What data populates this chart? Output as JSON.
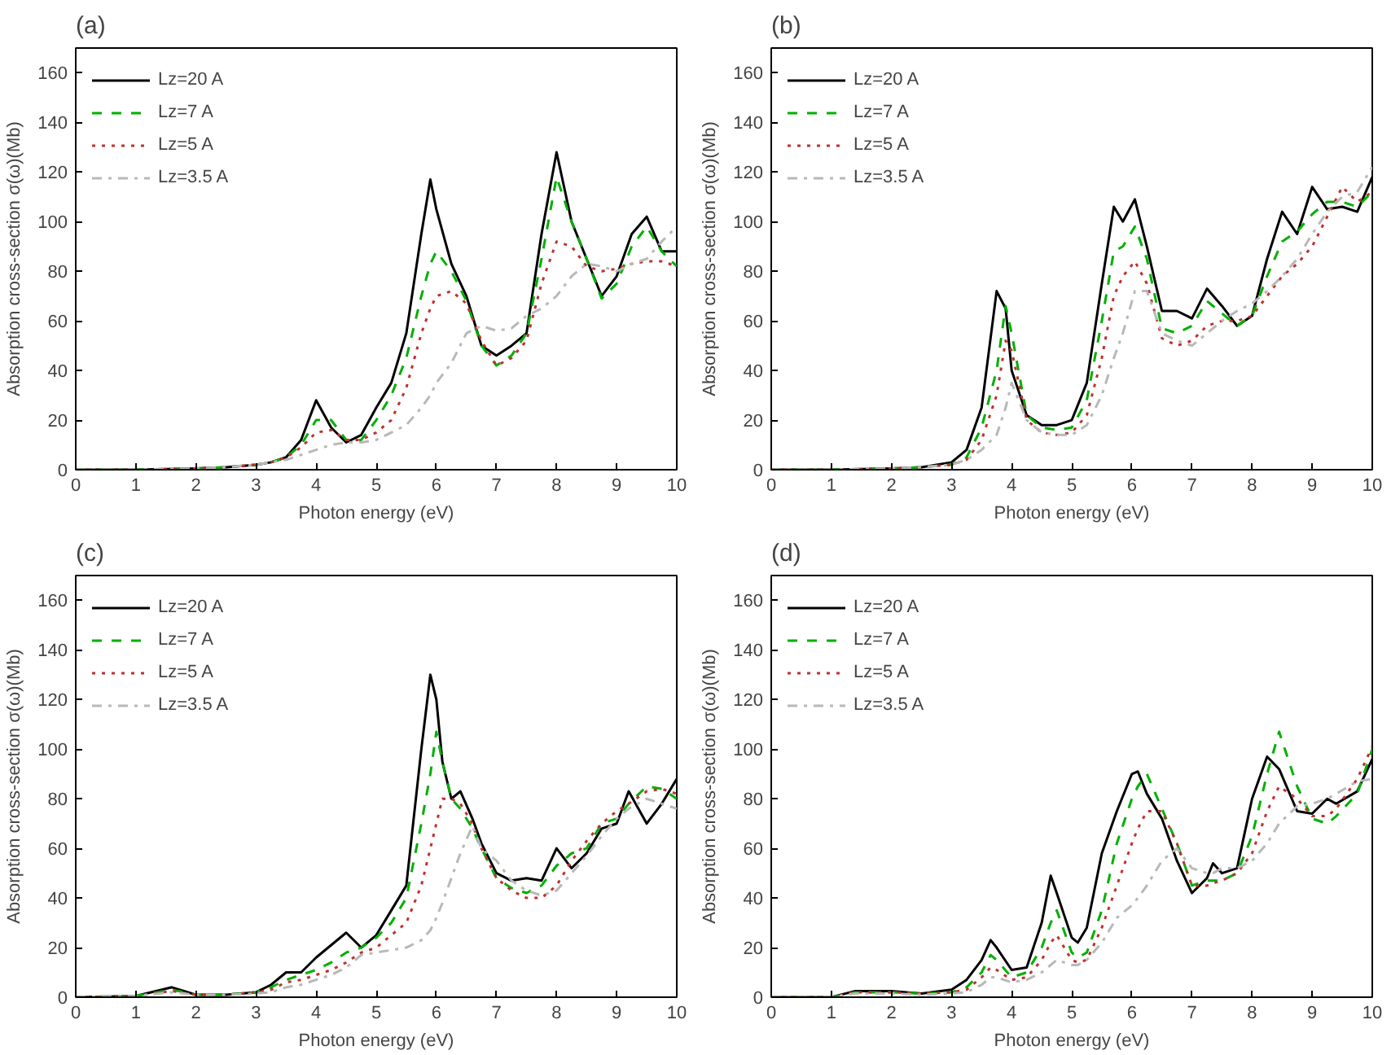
{
  "chart_data": [
    {
      "type": "line",
      "title": "(a)",
      "xlabel": "Photon energy (eV)",
      "ylabel": "Absorption cross-section σ(ω)(Mb)",
      "xlim": [
        0,
        10
      ],
      "ylim": [
        0,
        170
      ],
      "xticks": [
        0,
        1,
        2,
        3,
        4,
        5,
        6,
        7,
        8,
        9,
        10
      ],
      "yticks": [
        0,
        20,
        40,
        60,
        80,
        100,
        120,
        140,
        160
      ],
      "legend": "top left",
      "grid": false,
      "x": [
        0,
        1,
        2,
        2.5,
        3,
        3.25,
        3.5,
        3.75,
        4,
        4.25,
        4.5,
        4.75,
        5,
        5.25,
        5.5,
        5.75,
        5.9,
        6,
        6.25,
        6.5,
        6.75,
        7,
        7.25,
        7.5,
        7.75,
        8,
        8.25,
        8.5,
        8.75,
        9,
        9.25,
        9.5,
        9.75,
        10
      ],
      "series": [
        {
          "name": "Lz=20 A",
          "color": "#000000",
          "line_style": "solid",
          "values": [
            0,
            0,
            0.5,
            1,
            2,
            3,
            5,
            12,
            28,
            17,
            11,
            14,
            25,
            35,
            55,
            95,
            117,
            105,
            83,
            70,
            50,
            46,
            50,
            55,
            95,
            128,
            100,
            85,
            70,
            78,
            95,
            102,
            88,
            88
          ]
        },
        {
          "name": "Lz=7 A",
          "color": "#00b000",
          "line_style": "dashed",
          "values": [
            0,
            0,
            0.5,
            1,
            2,
            3,
            5,
            10,
            20,
            20,
            12,
            12,
            20,
            30,
            45,
            70,
            83,
            88,
            80,
            68,
            50,
            42,
            46,
            55,
            85,
            118,
            100,
            85,
            69,
            75,
            90,
            98,
            88,
            82
          ]
        },
        {
          "name": "Lz=5 A",
          "color": "#c03030",
          "line_style": "dotted",
          "values": [
            0,
            0,
            0.5,
            1,
            2,
            3,
            5,
            9,
            15,
            16,
            12,
            12,
            15,
            20,
            33,
            55,
            65,
            70,
            72,
            67,
            52,
            42,
            45,
            52,
            75,
            92,
            90,
            82,
            80,
            81,
            83,
            84,
            84,
            82
          ]
        },
        {
          "name": "Lz=3.5 A",
          "color": "#b8b8b8",
          "line_style": "dashdot",
          "values": [
            0,
            0,
            0.5,
            1,
            2,
            3,
            4,
            6,
            8,
            10,
            11,
            11,
            12,
            15,
            18,
            25,
            30,
            35,
            43,
            55,
            58,
            56,
            57,
            62,
            65,
            70,
            78,
            83,
            82,
            80,
            83,
            85,
            92,
            98
          ]
        }
      ]
    },
    {
      "type": "line",
      "title": "(b)",
      "xlabel": "Photon energy (eV)",
      "ylabel": "Absorption cross-section σ(ω)(Mb)",
      "xlim": [
        0,
        10
      ],
      "ylim": [
        0,
        170
      ],
      "xticks": [
        0,
        1,
        2,
        3,
        4,
        5,
        6,
        7,
        8,
        9,
        10
      ],
      "yticks": [
        0,
        20,
        40,
        60,
        80,
        100,
        120,
        140,
        160
      ],
      "legend": "top left",
      "grid": false,
      "x": [
        0,
        1,
        2,
        2.5,
        3,
        3.25,
        3.5,
        3.75,
        3.9,
        4,
        4.25,
        4.5,
        4.75,
        5,
        5.25,
        5.5,
        5.7,
        5.85,
        6.05,
        6.25,
        6.5,
        6.75,
        7,
        7.25,
        7.5,
        7.75,
        8,
        8.25,
        8.5,
        8.75,
        9,
        9.25,
        9.5,
        9.75,
        10
      ],
      "series": [
        {
          "name": "Lz=20 A",
          "color": "#000000",
          "line_style": "solid",
          "values": [
            0,
            0,
            0.5,
            1,
            3,
            8,
            25,
            72,
            65,
            40,
            22,
            18,
            18,
            20,
            35,
            75,
            106,
            100,
            109,
            90,
            64,
            64,
            61,
            73,
            66,
            58,
            62,
            85,
            104,
            95,
            114,
            105,
            106,
            104,
            118
          ]
        },
        {
          "name": "Lz=7 A",
          "color": "#00b000",
          "line_style": "dashed",
          "values": [
            0,
            0,
            0.5,
            1,
            2,
            5,
            17,
            40,
            66,
            55,
            22,
            17,
            16,
            17,
            28,
            60,
            88,
            90,
            98,
            85,
            57,
            55,
            58,
            68,
            63,
            58,
            62,
            78,
            92,
            96,
            103,
            108,
            108,
            106,
            112
          ]
        },
        {
          "name": "Lz=5 A",
          "color": "#c03030",
          "line_style": "dotted",
          "values": [
            0,
            0,
            0.5,
            1,
            2,
            4,
            12,
            30,
            52,
            48,
            20,
            15,
            14,
            15,
            22,
            45,
            70,
            78,
            84,
            75,
            53,
            50,
            52,
            58,
            60,
            60,
            62,
            70,
            78,
            83,
            90,
            102,
            114,
            108,
            112
          ]
        },
        {
          "name": "Lz=3.5 A",
          "color": "#b8b8b8",
          "line_style": "dashdot",
          "values": [
            0,
            0,
            0.5,
            1,
            2,
            4,
            8,
            14,
            25,
            35,
            20,
            15,
            14,
            14,
            18,
            30,
            45,
            55,
            72,
            72,
            55,
            52,
            50,
            55,
            60,
            64,
            67,
            72,
            78,
            85,
            95,
            104,
            110,
            112,
            122
          ]
        }
      ]
    },
    {
      "type": "line",
      "title": "(c)",
      "xlabel": "Photon energy (eV)",
      "ylabel": "Absorption cross-section σ(ω)(Mb)",
      "xlim": [
        0,
        10
      ],
      "ylim": [
        0,
        170
      ],
      "xticks": [
        0,
        1,
        2,
        3,
        4,
        5,
        6,
        7,
        8,
        9,
        10
      ],
      "yticks": [
        0,
        20,
        40,
        60,
        80,
        100,
        120,
        140,
        160
      ],
      "legend": "top left",
      "grid": false,
      "x": [
        0,
        1,
        1.6,
        2,
        2.5,
        3,
        3.25,
        3.5,
        3.75,
        4,
        4.25,
        4.5,
        4.75,
        5,
        5.25,
        5.5,
        5.75,
        5.9,
        6,
        6.1,
        6.25,
        6.4,
        6.6,
        6.75,
        7,
        7.25,
        7.5,
        7.75,
        8,
        8.25,
        8.5,
        8.75,
        9,
        9.2,
        9.5,
        9.75,
        10
      ],
      "series": [
        {
          "name": "Lz=20 A",
          "color": "#000000",
          "line_style": "solid",
          "values": [
            0,
            0.5,
            4,
            1,
            1,
            2,
            5,
            10,
            10,
            16,
            21,
            26,
            20,
            25,
            35,
            45,
            100,
            130,
            120,
            95,
            80,
            83,
            72,
            62,
            50,
            47,
            48,
            47,
            60,
            52,
            58,
            68,
            70,
            83,
            70,
            78,
            88
          ]
        },
        {
          "name": "Lz=7 A",
          "color": "#00b000",
          "line_style": "dashed",
          "values": [
            0,
            0.5,
            3,
            1,
            1,
            2,
            4,
            7,
            9,
            11,
            14,
            18,
            20,
            24,
            30,
            40,
            70,
            90,
            107,
            95,
            80,
            76,
            68,
            60,
            48,
            44,
            42,
            45,
            53,
            58,
            60,
            70,
            72,
            78,
            85,
            84,
            80
          ]
        },
        {
          "name": "Lz=5 A",
          "color": "#c03030",
          "line_style": "dotted",
          "values": [
            0,
            0.5,
            2.5,
            1,
            1,
            2,
            3,
            6,
            7,
            9,
            11,
            14,
            18,
            20,
            25,
            30,
            45,
            60,
            70,
            80,
            80,
            78,
            70,
            60,
            48,
            43,
            40,
            40,
            45,
            55,
            63,
            70,
            75,
            78,
            83,
            84,
            82
          ]
        },
        {
          "name": "Lz=3.5 A",
          "color": "#b8b8b8",
          "line_style": "dashdot",
          "values": [
            0,
            0.5,
            2,
            1,
            1,
            1.5,
            2,
            4,
            5,
            7,
            9,
            12,
            17,
            18,
            19,
            20,
            23,
            27,
            32,
            38,
            48,
            58,
            69,
            60,
            55,
            47,
            43,
            41,
            43,
            50,
            57,
            65,
            72,
            76,
            80,
            78,
            76
          ]
        }
      ]
    },
    {
      "type": "line",
      "title": "(d)",
      "xlabel": "Photon energy (eV)",
      "ylabel": "Absorption cross-section σ(ω)(Mb)",
      "xlim": [
        0,
        10
      ],
      "ylim": [
        0,
        170
      ],
      "xticks": [
        0,
        1,
        2,
        3,
        4,
        5,
        6,
        7,
        8,
        9,
        10
      ],
      "yticks": [
        0,
        20,
        40,
        60,
        80,
        100,
        120,
        140,
        160
      ],
      "legend": "top left",
      "grid": false,
      "x": [
        0,
        1,
        1.4,
        2,
        2.5,
        3,
        3.25,
        3.5,
        3.65,
        3.75,
        4,
        4.25,
        4.5,
        4.65,
        4.75,
        5,
        5.1,
        5.25,
        5.5,
        5.75,
        6,
        6.1,
        6.25,
        6.5,
        6.75,
        7,
        7.25,
        7.35,
        7.5,
        7.75,
        8,
        8.25,
        8.45,
        8.75,
        9,
        9.25,
        9.4,
        9.75,
        10
      ],
      "series": [
        {
          "name": "Lz=20 A",
          "color": "#000000",
          "line_style": "solid",
          "values": [
            0,
            0,
            2.5,
            2.5,
            1.5,
            3,
            7,
            15,
            23,
            20,
            11,
            12,
            30,
            49,
            42,
            24,
            22,
            28,
            58,
            75,
            90,
            91,
            82,
            72,
            55,
            42,
            48,
            54,
            50,
            52,
            80,
            97,
            92,
            75,
            74,
            80,
            78,
            83,
            96
          ]
        },
        {
          "name": "Lz=7 A",
          "color": "#00b000",
          "line_style": "dashed",
          "values": [
            0,
            0,
            2,
            2,
            1.5,
            2,
            4,
            10,
            17,
            15,
            8,
            10,
            20,
            30,
            35,
            18,
            16,
            18,
            35,
            62,
            80,
            85,
            90,
            76,
            62,
            45,
            47,
            47,
            47,
            50,
            65,
            90,
            107,
            85,
            72,
            70,
            73,
            82,
            100
          ]
        },
        {
          "name": "Lz=5 A",
          "color": "#c03030",
          "line_style": "dotted",
          "values": [
            0,
            0,
            2,
            2,
            1.5,
            2,
            3,
            8,
            12,
            11,
            7,
            8,
            15,
            22,
            25,
            15,
            14,
            15,
            28,
            45,
            62,
            68,
            75,
            75,
            62,
            45,
            45,
            46,
            47,
            50,
            58,
            75,
            85,
            80,
            73,
            73,
            76,
            88,
            101
          ]
        },
        {
          "name": "Lz=3.5 A",
          "color": "#b8b8b8",
          "line_style": "dashdot",
          "values": [
            0,
            0,
            1.5,
            1.5,
            1,
            1.5,
            2,
            5,
            8,
            8,
            6,
            7,
            10,
            13,
            15,
            13,
            13,
            15,
            22,
            32,
            37,
            40,
            45,
            55,
            60,
            52,
            50,
            50,
            52,
            52,
            55,
            62,
            70,
            77,
            78,
            80,
            82,
            87,
            88
          ]
        }
      ]
    }
  ]
}
